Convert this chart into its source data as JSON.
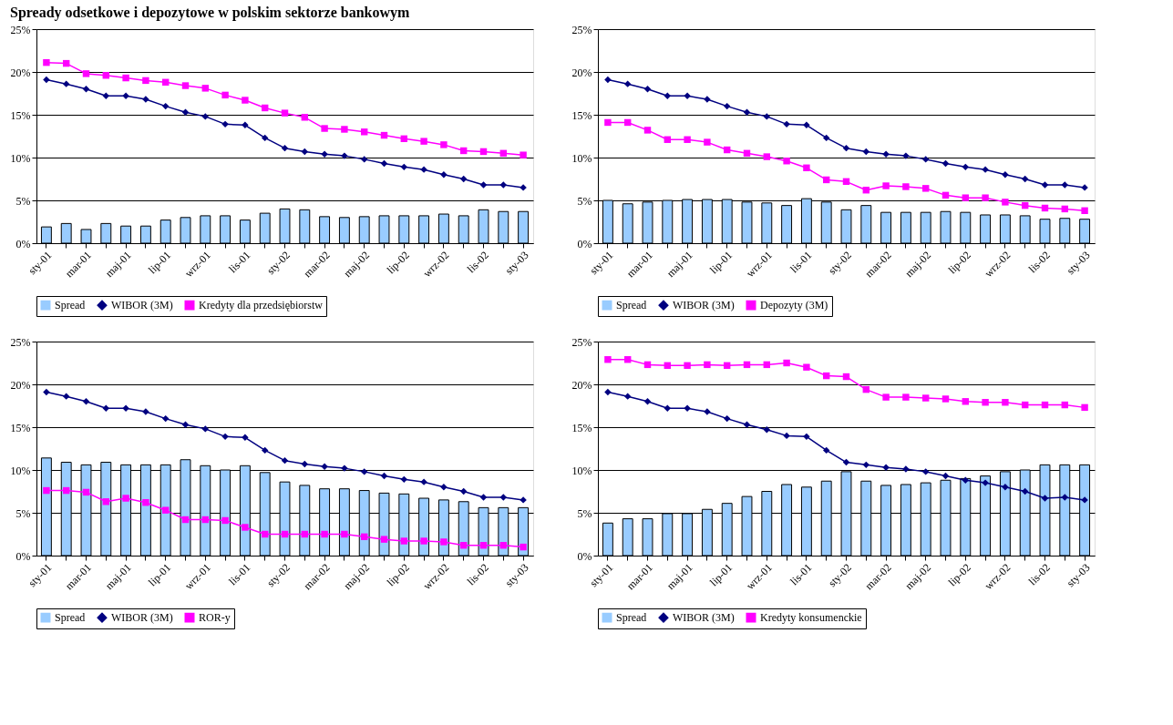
{
  "chart_data": [
    {
      "type": "bar",
      "title": "Spready odsetkowe i depozytowe w polskim sektorze bankowym",
      "categories": [
        "sty-01",
        null,
        "mar-01",
        null,
        "maj-01",
        null,
        "lip-01",
        null,
        "wrz-01",
        null,
        "lis-01",
        null,
        "sty-02",
        null,
        "mar-02",
        null,
        "maj-02",
        null,
        "lip-02",
        null,
        "wrz-02",
        null,
        "lis-02",
        null,
        "sty-03"
      ],
      "series": [
        {
          "name": "Spread",
          "type": "bar",
          "color": "#99ccff",
          "values": [
            1.9,
            2.3,
            1.6,
            2.3,
            2.0,
            2.0,
            2.7,
            3.0,
            3.2,
            3.2,
            2.7,
            3.5,
            4.0,
            3.9,
            3.1,
            3.0,
            3.1,
            3.2,
            3.2,
            3.2,
            3.4,
            3.2,
            3.9,
            3.7,
            3.7
          ]
        },
        {
          "name": "WIBOR (3M)",
          "type": "line",
          "marker": "diamond",
          "color": "#000080",
          "values": [
            19.1,
            18.6,
            18.0,
            17.2,
            17.2,
            16.8,
            16.0,
            15.3,
            14.8,
            13.9,
            13.8,
            12.3,
            11.1,
            10.7,
            10.4,
            10.2,
            9.8,
            9.3,
            8.9,
            8.6,
            8.0,
            7.5,
            6.8,
            6.8,
            6.5
          ]
        },
        {
          "name": "Kredyty dla przedsiębiorstw",
          "type": "line",
          "marker": "square",
          "color": "#ff00ff",
          "values": [
            21.1,
            21.0,
            19.8,
            19.6,
            19.3,
            19.0,
            18.8,
            18.4,
            18.1,
            17.3,
            16.7,
            15.8,
            15.2,
            14.7,
            13.4,
            13.3,
            13.0,
            12.6,
            12.2,
            11.9,
            11.5,
            10.8,
            10.7,
            10.5,
            10.3
          ]
        }
      ],
      "ylim": [
        0,
        25
      ],
      "yticks": [
        {
          "value": 0,
          "label": "0%"
        },
        {
          "value": 5,
          "label": "5%"
        },
        {
          "value": 10,
          "label": "10%"
        },
        {
          "value": 15,
          "label": "15%"
        },
        {
          "value": 20,
          "label": "20%"
        },
        {
          "value": 25,
          "label": "25%"
        }
      ],
      "grid": "y",
      "legend": "bottom"
    },
    {
      "type": "bar",
      "categories": [
        "sty-01",
        null,
        "mar-01",
        null,
        "maj-01",
        null,
        "lip-01",
        null,
        "wrz-01",
        null,
        "lis-01",
        null,
        "sty-02",
        null,
        "mar-02",
        null,
        "maj-02",
        null,
        "lip-02",
        null,
        "wrz-02",
        null,
        "lis-02",
        null,
        "sty-03"
      ],
      "series": [
        {
          "name": "Spread",
          "type": "bar",
          "color": "#99ccff",
          "values": [
            5.0,
            4.6,
            4.8,
            5.0,
            5.1,
            5.1,
            5.1,
            4.8,
            4.7,
            4.4,
            5.2,
            4.8,
            3.9,
            4.4,
            3.6,
            3.6,
            3.6,
            3.7,
            3.6,
            3.3,
            3.3,
            3.2,
            2.8,
            2.9,
            2.8
          ]
        },
        {
          "name": "WIBOR (3M)",
          "type": "line",
          "marker": "diamond",
          "color": "#000080",
          "values": [
            19.1,
            18.6,
            18.0,
            17.2,
            17.2,
            16.8,
            16.0,
            15.3,
            14.8,
            13.9,
            13.8,
            12.3,
            11.1,
            10.7,
            10.4,
            10.2,
            9.8,
            9.3,
            8.9,
            8.6,
            8.0,
            7.5,
            6.8,
            6.8,
            6.5
          ]
        },
        {
          "name": "Depozyty (3M)",
          "type": "line",
          "marker": "square",
          "color": "#ff00ff",
          "values": [
            14.1,
            14.1,
            13.2,
            12.1,
            12.1,
            11.8,
            10.9,
            10.5,
            10.1,
            9.6,
            8.8,
            7.4,
            7.2,
            6.2,
            6.7,
            6.6,
            6.4,
            5.6,
            5.3,
            5.3,
            4.8,
            4.4,
            4.1,
            4.0,
            3.8
          ]
        }
      ],
      "ylim": [
        0,
        25
      ],
      "yticks": [
        {
          "value": 0,
          "label": "0%"
        },
        {
          "value": 5,
          "label": "5%"
        },
        {
          "value": 10,
          "label": "10%"
        },
        {
          "value": 15,
          "label": "15%"
        },
        {
          "value": 20,
          "label": "20%"
        },
        {
          "value": 25,
          "label": "25%"
        }
      ],
      "grid": "y",
      "legend": "bottom"
    },
    {
      "type": "bar",
      "categories": [
        "sty-01",
        null,
        "mar-01",
        null,
        "maj-01",
        null,
        "lip-01",
        null,
        "wrz-01",
        null,
        "lis-01",
        null,
        "sty-02",
        null,
        "mar-02",
        null,
        "maj-02",
        null,
        "lip-02",
        null,
        "wrz-02",
        null,
        "lis-02",
        null,
        "sty-03"
      ],
      "series": [
        {
          "name": "Spread",
          "type": "bar",
          "color": "#99ccff",
          "values": [
            11.4,
            10.9,
            10.6,
            10.9,
            10.6,
            10.6,
            10.6,
            11.2,
            10.5,
            10.0,
            10.5,
            9.7,
            8.6,
            8.2,
            7.8,
            7.8,
            7.6,
            7.3,
            7.2,
            6.7,
            6.5,
            6.3,
            5.6,
            5.6,
            5.6
          ]
        },
        {
          "name": "WIBOR (3M)",
          "type": "line",
          "marker": "diamond",
          "color": "#000080",
          "values": [
            19.1,
            18.6,
            18.0,
            17.2,
            17.2,
            16.8,
            16.0,
            15.3,
            14.8,
            13.9,
            13.8,
            12.3,
            11.1,
            10.7,
            10.4,
            10.2,
            9.8,
            9.3,
            8.9,
            8.6,
            8.0,
            7.5,
            6.8,
            6.8,
            6.5
          ]
        },
        {
          "name": "ROR-y",
          "type": "line",
          "marker": "square",
          "color": "#ff00ff",
          "values": [
            7.6,
            7.6,
            7.4,
            6.3,
            6.7,
            6.2,
            5.3,
            4.2,
            4.2,
            4.1,
            3.3,
            2.5,
            2.5,
            2.5,
            2.5,
            2.5,
            2.2,
            1.9,
            1.7,
            1.7,
            1.6,
            1.2,
            1.2,
            1.2,
            1.0
          ]
        }
      ],
      "ylim": [
        0,
        25
      ],
      "yticks": [
        {
          "value": 0,
          "label": "0%"
        },
        {
          "value": 5,
          "label": "5%"
        },
        {
          "value": 10,
          "label": "10%"
        },
        {
          "value": 15,
          "label": "15%"
        },
        {
          "value": 20,
          "label": "20%"
        },
        {
          "value": 25,
          "label": "25%"
        }
      ],
      "grid": "y",
      "legend": "bottom"
    },
    {
      "type": "bar",
      "categories": [
        "sty-01",
        null,
        "mar-01",
        null,
        "maj-01",
        null,
        "lip-01",
        null,
        "wrz-01",
        null,
        "lis-01",
        null,
        "sty-02",
        null,
        "mar-02",
        null,
        "maj-02",
        null,
        "lip-02",
        null,
        "wrz-02",
        null,
        "lis-02",
        null,
        "sty-03"
      ],
      "series": [
        {
          "name": "Spread",
          "type": "bar",
          "color": "#99ccff",
          "values": [
            3.8,
            4.3,
            4.3,
            4.9,
            4.9,
            5.4,
            6.1,
            6.9,
            7.5,
            8.3,
            8.0,
            8.7,
            9.8,
            8.7,
            8.2,
            8.3,
            8.5,
            8.8,
            9.0,
            9.3,
            9.8,
            10.0,
            10.6,
            10.6,
            10.6
          ]
        },
        {
          "name": "WIBOR (3M)",
          "type": "line",
          "marker": "diamond",
          "color": "#000080",
          "values": [
            19.1,
            18.6,
            18.0,
            17.2,
            17.2,
            16.8,
            16.0,
            15.3,
            14.7,
            14.0,
            13.9,
            12.3,
            10.9,
            10.6,
            10.3,
            10.1,
            9.8,
            9.3,
            8.8,
            8.5,
            8.0,
            7.5,
            6.7,
            6.8,
            6.5
          ]
        },
        {
          "name": "Kredyty konsumenckie",
          "type": "line",
          "marker": "square",
          "color": "#ff00ff",
          "values": [
            22.9,
            22.9,
            22.3,
            22.2,
            22.2,
            22.3,
            22.2,
            22.3,
            22.3,
            22.5,
            22.0,
            21.0,
            20.9,
            19.4,
            18.5,
            18.5,
            18.4,
            18.3,
            18.0,
            17.9,
            17.9,
            17.6,
            17.6,
            17.6,
            17.3
          ]
        }
      ],
      "ylim": [
        0,
        25
      ],
      "yticks": [
        {
          "value": 0,
          "label": "0%"
        },
        {
          "value": 5,
          "label": "5%"
        },
        {
          "value": 10,
          "label": "10%"
        },
        {
          "value": 15,
          "label": "15%"
        },
        {
          "value": 20,
          "label": "20%"
        },
        {
          "value": 25,
          "label": "25%"
        }
      ],
      "grid": "y",
      "legend": "bottom"
    }
  ]
}
